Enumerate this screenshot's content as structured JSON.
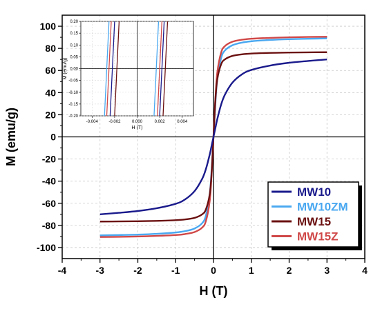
{
  "chart_data": [
    {
      "type": "line",
      "title": "",
      "xlabel": "H (T)",
      "ylabel": "M (emu/g)",
      "xlim": [
        -4,
        4
      ],
      "ylim": [
        -110,
        110
      ],
      "xticks": [
        -4,
        -3,
        -2,
        -1,
        0,
        1,
        2,
        3,
        4
      ],
      "yticks": [
        -100,
        -80,
        -60,
        -40,
        -20,
        0,
        20,
        40,
        60,
        80,
        100
      ],
      "grid": true,
      "legend_position": "bottom-right",
      "series": [
        {
          "name": "MW10",
          "color": "#1a1a8c",
          "x": [
            -3,
            -2.5,
            -2,
            -1.5,
            -1,
            -0.75,
            -0.5,
            -0.3,
            -0.2,
            -0.1,
            -0.05,
            0,
            0.05,
            0.1,
            0.2,
            0.3,
            0.5,
            0.75,
            1,
            1.5,
            2,
            2.5,
            3
          ],
          "y": [
            -70,
            -68.6,
            -67,
            -64.5,
            -60.5,
            -56.5,
            -49,
            -38,
            -29,
            -16,
            -8,
            0,
            8,
            16,
            29,
            38,
            49,
            56.5,
            60.5,
            64.5,
            67,
            68.6,
            70
          ]
        },
        {
          "name": "MW10ZM",
          "color": "#4aa8f0",
          "x": [
            -3,
            -2.5,
            -2,
            -1.5,
            -1,
            -0.75,
            -0.5,
            -0.3,
            -0.2,
            -0.1,
            -0.05,
            0,
            0.05,
            0.1,
            0.2,
            0.3,
            0.5,
            0.75,
            1,
            1.5,
            2,
            2.5,
            3
          ],
          "y": [
            -89,
            -88.7,
            -88.3,
            -87.6,
            -86.4,
            -85.2,
            -82.8,
            -78,
            -71,
            -52,
            -30,
            0,
            30,
            52,
            71,
            78,
            82.8,
            85.2,
            86.4,
            87.6,
            88.3,
            88.7,
            89
          ]
        },
        {
          "name": "MW15",
          "color": "#6b1010",
          "x": [
            -3,
            -2.5,
            -2,
            -1.5,
            -1,
            -0.75,
            -0.5,
            -0.3,
            -0.2,
            -0.1,
            -0.05,
            0,
            0.05,
            0.1,
            0.2,
            0.3,
            0.5,
            0.75,
            1,
            1.5,
            2,
            2.5,
            3
          ],
          "y": [
            -76.5,
            -76.4,
            -76.2,
            -75.9,
            -75.3,
            -74.6,
            -73.2,
            -70,
            -65.5,
            -52,
            -33,
            0,
            33,
            52,
            65.5,
            70,
            73.2,
            74.6,
            75.3,
            75.9,
            76.2,
            76.4,
            76.5
          ]
        },
        {
          "name": "MW15Z",
          "color": "#d04848",
          "x": [
            -3,
            -2.5,
            -2,
            -1.5,
            -1,
            -0.75,
            -0.5,
            -0.3,
            -0.2,
            -0.1,
            -0.05,
            0,
            0.05,
            0.1,
            0.2,
            0.3,
            0.5,
            0.75,
            1,
            1.5,
            2,
            2.5,
            3
          ],
          "y": [
            -90.5,
            -90.3,
            -90,
            -89.5,
            -88.7,
            -87.8,
            -86,
            -82,
            -76,
            -58,
            -34,
            0,
            34,
            58,
            76,
            82,
            86,
            87.8,
            88.7,
            89.5,
            90,
            90.3,
            90.5
          ]
        }
      ],
      "legend": [
        "MW10",
        "MW10ZM",
        "MW15",
        "MW15Z"
      ]
    },
    {
      "type": "line",
      "title": "",
      "xlabel": "H (T)",
      "ylabel": "M (emu/g)",
      "xlim": [
        -0.005,
        0.005
      ],
      "ylim": [
        -0.2,
        0.2
      ],
      "xticks": [
        -0.004,
        -0.002,
        0.0,
        0.002,
        0.004
      ],
      "xtick_labels": [
        "-0.004",
        "-0.002",
        "0.000",
        "0.002",
        "0.004"
      ],
      "yticks": [
        -0.2,
        -0.15,
        -0.1,
        -0.05,
        0,
        0.05,
        0.1,
        0.15,
        0.2
      ],
      "ytick_labels": [
        "-0.20",
        "-0.15",
        "-0.10",
        "-0.05",
        "0.00",
        "0.05",
        "0.10",
        "0.15",
        "0.20"
      ],
      "grid": true,
      "series": [
        {
          "name": "MW10",
          "color": "#1a1a8c",
          "segments": [
            [
              [
                -0.0024,
                -0.2
              ],
              [
                -0.002,
                0.2
              ]
            ],
            [
              [
                0.002,
                -0.2
              ],
              [
                0.0024,
                0.2
              ]
            ]
          ]
        },
        {
          "name": "MW10ZM",
          "color": "#4aa8f0",
          "segments": [
            [
              [
                -0.0029,
                -0.2
              ],
              [
                -0.0025,
                0.2
              ]
            ],
            [
              [
                0.0015,
                -0.2
              ],
              [
                0.0019,
                0.2
              ]
            ]
          ]
        },
        {
          "name": "MW15",
          "color": "#6b1010",
          "segments": [
            [
              [
                -0.002,
                -0.2
              ],
              [
                -0.0016,
                0.2
              ]
            ],
            [
              [
                0.0023,
                -0.2
              ],
              [
                0.0027,
                0.2
              ]
            ]
          ]
        },
        {
          "name": "MW15Z",
          "color": "#d04848",
          "segments": [
            [
              [
                -0.0027,
                -0.2
              ],
              [
                -0.0023,
                0.2
              ]
            ],
            [
              [
                0.0018,
                -0.2
              ],
              [
                0.0022,
                0.2
              ]
            ]
          ]
        }
      ]
    }
  ]
}
